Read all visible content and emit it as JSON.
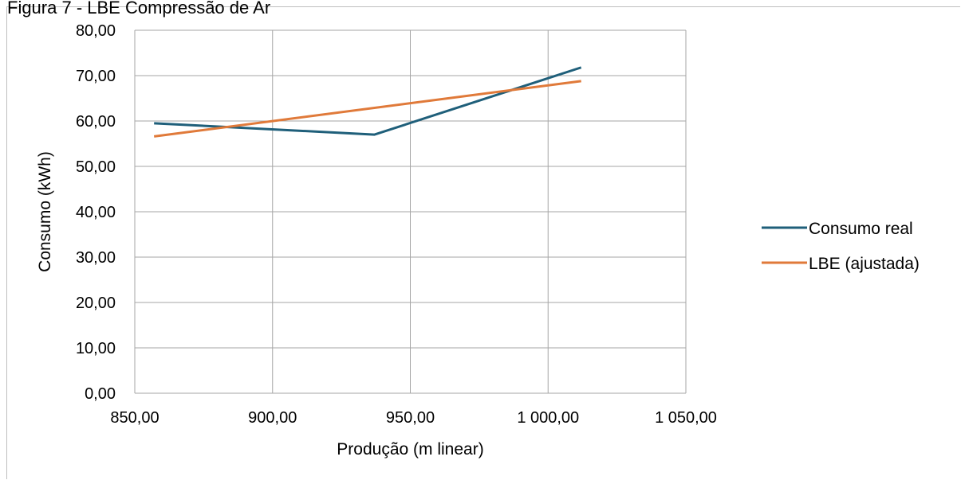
{
  "caption": "Figura 7 - LBE Compressão de Ar",
  "chart_data": {
    "type": "line",
    "title": "",
    "xlabel": "Produção (m linear)",
    "ylabel": "Consumo (kWh)",
    "xlim": [
      850,
      1050
    ],
    "ylim": [
      0,
      80
    ],
    "x_ticks": [
      "850,00",
      "900,00",
      "950,00",
      "1 000,00",
      "1 050,00"
    ],
    "y_ticks": [
      "0,00",
      "10,00",
      "20,00",
      "30,00",
      "40,00",
      "50,00",
      "60,00",
      "70,00",
      "80,00"
    ],
    "x_tick_values": [
      850,
      900,
      950,
      1000,
      1050
    ],
    "y_tick_values": [
      0,
      10,
      20,
      30,
      40,
      50,
      60,
      70,
      80
    ],
    "grid": true,
    "legend_position": "right",
    "series": [
      {
        "name": "Consumo real",
        "color": "#1f5f7a",
        "points": [
          [
            857,
            59.5
          ],
          [
            937,
            57.0
          ],
          [
            1012,
            71.8
          ]
        ]
      },
      {
        "name": "LBE (ajustada)",
        "color": "#e07a3a",
        "points": [
          [
            857,
            56.6
          ],
          [
            1012,
            68.8
          ]
        ]
      }
    ]
  }
}
